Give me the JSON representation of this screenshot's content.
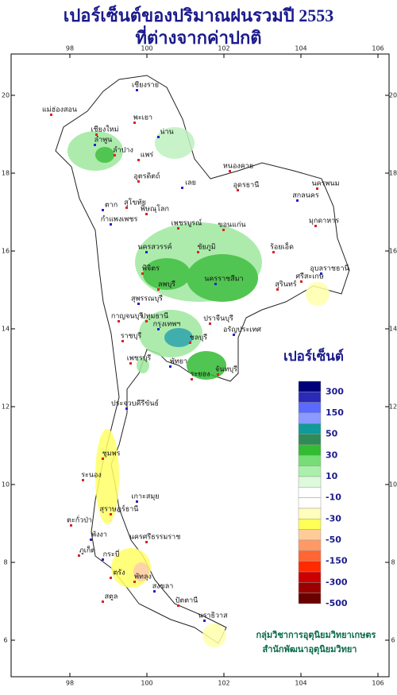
{
  "header": {
    "title": "เปอร์เซ็นต์ของปริมาณฝนรวมปี  2553",
    "subtitle": "ที่ต่างจากค่าปกติ"
  },
  "axes": {
    "lon_ticks": [
      98,
      100,
      102,
      104,
      106
    ],
    "lat_ticks": [
      6,
      8,
      10,
      12,
      14,
      16,
      18,
      20
    ]
  },
  "provinces": [
    "เชียงราย",
    "แม่ฮ่องสอน",
    "เชียงใหม่",
    "ลำพูน",
    "ลำปาง",
    "พะเยา",
    "น่าน",
    "แพร่",
    "อุตรดิตถ์",
    "เลย",
    "หนองคาย",
    "อุดรธานี",
    "สกลนคร",
    "นครพนม",
    "มุกดาหาร",
    "ตาก",
    "สุโขทัย",
    "พิษณุโลก",
    "กำแพงเพชร",
    "เพชรบูรณ์",
    "ขอนแก่น",
    "นครสวรรค์",
    "ชัยภูมิ",
    "ร้อยเอ็ด",
    "อุบลราชธานี",
    "พิจิตร",
    "ลพบุรี",
    "นครราชสีมา",
    "สุรินทร์",
    "ศรีสะเกษ",
    "สุพรรณบุรี",
    "กาญจนบุรี",
    "ปทุมธานี",
    "กรุงเทพฯ",
    "ราชบุรี",
    "ปราจีนบุรี",
    "อรัญประเทศ",
    "ชลบุรี",
    "เพชรบุรี",
    "พัทยา",
    "ระยอง",
    "จันทบุรี",
    "ประจวบคีรีขันธ์",
    "ชุมพร",
    "ระนอง",
    "เกาะสมุย",
    "สุราษฎร์ธานี",
    "ตะกั่วป่า",
    "พังงา",
    "นครศรีธรรมราช",
    "ภูเก็ต",
    "กระบี่",
    "ตรัง",
    "พัทลุง",
    "สงขลา",
    "สตูล",
    "ปัตตานี",
    "นราธิวาส"
  ],
  "legend": {
    "title": "เปอร์เซ็นต์",
    "labels": [
      300,
      150,
      50,
      30,
      10,
      -10,
      -30,
      -50,
      -150,
      -300,
      -500
    ]
  },
  "credit": {
    "line1": "กลุ่มวิชาการอุตุนิยมวิทยาเกษตร",
    "line2": "สำนักพัฒนาอุตุนิยมวิทยา"
  }
}
